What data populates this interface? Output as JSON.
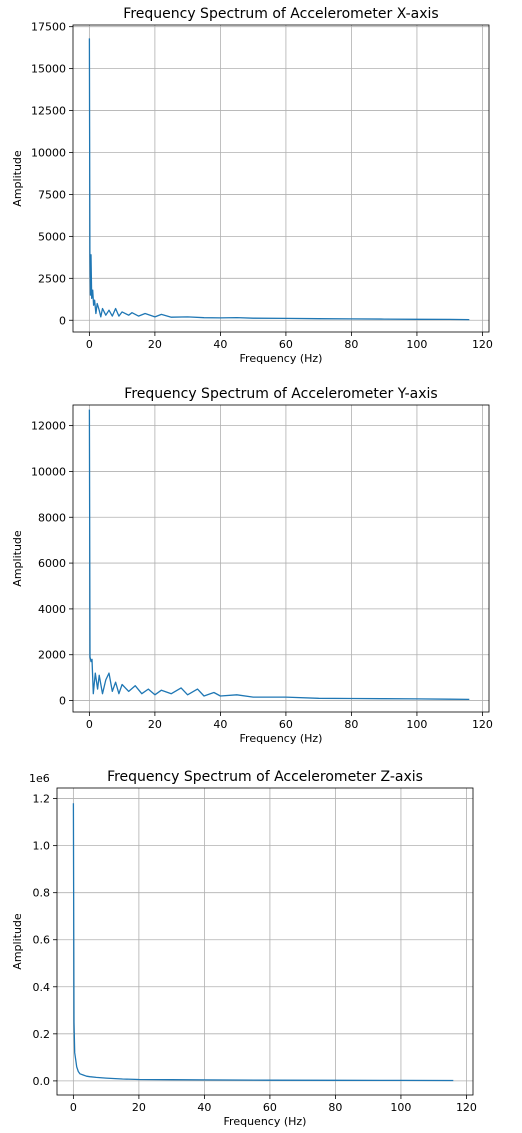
{
  "colors": {
    "series": "#1f77b4",
    "grid": "#b0b0b0"
  },
  "chart_data": [
    {
      "type": "line",
      "title": "Frequency Spectrum of Accelerometer X-axis",
      "xlabel": "Frequency (Hz)",
      "ylabel": "Amplitude",
      "xlim": [
        -5,
        122
      ],
      "ylim": [
        -700,
        17600
      ],
      "xticks": [
        0,
        20,
        40,
        60,
        80,
        100,
        120
      ],
      "yticks": [
        0,
        2500,
        5000,
        7500,
        10000,
        12500,
        15000,
        17500
      ],
      "ytick_labels": [
        "0",
        "2500",
        "5000",
        "7500",
        "10000",
        "12500",
        "15000",
        "17500"
      ],
      "grid": true,
      "offset_text": "",
      "series": [
        {
          "values": [
            [
              0,
              16800
            ],
            [
              0.15,
              4000
            ],
            [
              0.3,
              1500
            ],
            [
              0.5,
              3900
            ],
            [
              0.7,
              1300
            ],
            [
              1,
              1800
            ],
            [
              1.3,
              900
            ],
            [
              1.6,
              1200
            ],
            [
              2,
              400
            ],
            [
              2.4,
              1000
            ],
            [
              3,
              600
            ],
            [
              3.5,
              200
            ],
            [
              4,
              700
            ],
            [
              5,
              300
            ],
            [
              6,
              600
            ],
            [
              7,
              250
            ],
            [
              8,
              700
            ],
            [
              9,
              250
            ],
            [
              10,
              500
            ],
            [
              12,
              300
            ],
            [
              13,
              450
            ],
            [
              15,
              250
            ],
            [
              17,
              400
            ],
            [
              20,
              200
            ],
            [
              22,
              350
            ],
            [
              25,
              180
            ],
            [
              30,
              200
            ],
            [
              35,
              150
            ],
            [
              40,
              140
            ],
            [
              45,
              160
            ],
            [
              50,
              120
            ],
            [
              60,
              110
            ],
            [
              70,
              90
            ],
            [
              80,
              80
            ],
            [
              90,
              70
            ],
            [
              100,
              60
            ],
            [
              110,
              50
            ],
            [
              116,
              40
            ]
          ]
        }
      ]
    },
    {
      "type": "line",
      "title": "Frequency Spectrum of Accelerometer Y-axis",
      "xlabel": "Frequency (Hz)",
      "ylabel": "Amplitude",
      "xlim": [
        -5,
        122
      ],
      "ylim": [
        -500,
        12900
      ],
      "xticks": [
        0,
        20,
        40,
        60,
        80,
        100,
        120
      ],
      "yticks": [
        0,
        2000,
        4000,
        6000,
        8000,
        10000,
        12000
      ],
      "ytick_labels": [
        "0",
        "2000",
        "4000",
        "6000",
        "8000",
        "10000",
        "12000"
      ],
      "grid": true,
      "offset_text": "",
      "series": [
        {
          "values": [
            [
              0,
              12700
            ],
            [
              0.2,
              1900
            ],
            [
              0.5,
              1700
            ],
            [
              0.8,
              1800
            ],
            [
              1.2,
              300
            ],
            [
              1.8,
              1200
            ],
            [
              2.5,
              500
            ],
            [
              3,
              1100
            ],
            [
              4,
              300
            ],
            [
              5,
              900
            ],
            [
              6,
              1200
            ],
            [
              7,
              400
            ],
            [
              8,
              800
            ],
            [
              9,
              300
            ],
            [
              10,
              700
            ],
            [
              12,
              400
            ],
            [
              14,
              650
            ],
            [
              16,
              300
            ],
            [
              18,
              500
            ],
            [
              20,
              250
            ],
            [
              22,
              450
            ],
            [
              25,
              300
            ],
            [
              28,
              550
            ],
            [
              30,
              250
            ],
            [
              33,
              500
            ],
            [
              35,
              200
            ],
            [
              38,
              350
            ],
            [
              40,
              200
            ],
            [
              45,
              250
            ],
            [
              50,
              150
            ],
            [
              60,
              150
            ],
            [
              70,
              100
            ],
            [
              80,
              90
            ],
            [
              90,
              80
            ],
            [
              100,
              70
            ],
            [
              110,
              60
            ],
            [
              116,
              50
            ]
          ]
        }
      ]
    },
    {
      "type": "line",
      "title": "Frequency Spectrum of Accelerometer Z-axis",
      "xlabel": "Frequency (Hz)",
      "ylabel": "Amplitude",
      "xlim": [
        -5,
        122
      ],
      "ylim": [
        -60000,
        1245000
      ],
      "xticks": [
        0,
        20,
        40,
        60,
        80,
        100,
        120
      ],
      "yticks": [
        0,
        200000,
        400000,
        600000,
        800000,
        1000000,
        1200000
      ],
      "ytick_labels": [
        "0.0",
        "0.2",
        "0.4",
        "0.6",
        "0.8",
        "1.0",
        "1.2"
      ],
      "grid": true,
      "offset_text": "1e6",
      "series": [
        {
          "values": [
            [
              0,
              1180000
            ],
            [
              0.2,
              250000
            ],
            [
              0.4,
              120000
            ],
            [
              0.7,
              90000
            ],
            [
              1,
              60000
            ],
            [
              1.5,
              40000
            ],
            [
              2,
              30000
            ],
            [
              3,
              25000
            ],
            [
              4,
              20000
            ],
            [
              5,
              18000
            ],
            [
              7,
              15000
            ],
            [
              10,
              12000
            ],
            [
              15,
              8000
            ],
            [
              20,
              6000
            ],
            [
              30,
              5000
            ],
            [
              40,
              4000
            ],
            [
              60,
              3000
            ],
            [
              80,
              2500
            ],
            [
              100,
              2000
            ],
            [
              116,
              1500
            ]
          ]
        }
      ]
    }
  ]
}
